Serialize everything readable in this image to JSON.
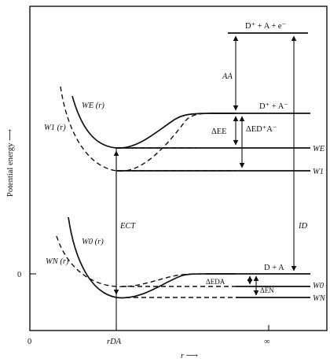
{
  "figure": {
    "y_axis_label": "Potential energy ⟶",
    "x_axis_label": "r ⟶",
    "x_ticks": {
      "zero": "0",
      "r_da": "rDA",
      "infinity": "∞"
    },
    "y_ticks": {
      "zero": "0"
    }
  },
  "states": {
    "top_ion_level": "D⁺ + A + e⁻",
    "ion_pair_asymptote": "D⁺ + A⁻",
    "neutral_asymptote": "D + A"
  },
  "curves": {
    "WE": "WE (r)",
    "W1": "W1 (r)",
    "W0": "W0 (r)",
    "WN": "WN (r)"
  },
  "levels": {
    "WE": "WE",
    "W1": "W1",
    "W0": "W0",
    "WN": "WN"
  },
  "arrows": {
    "AA": "AA",
    "delta_E_E": "ΔEE",
    "delta_E_ion_pair": "ΔED⁺A⁻",
    "E_CT": "ECT",
    "ID": "ID",
    "delta_E_DA": "ΔEDA",
    "delta_E_N": "ΔEN"
  }
}
